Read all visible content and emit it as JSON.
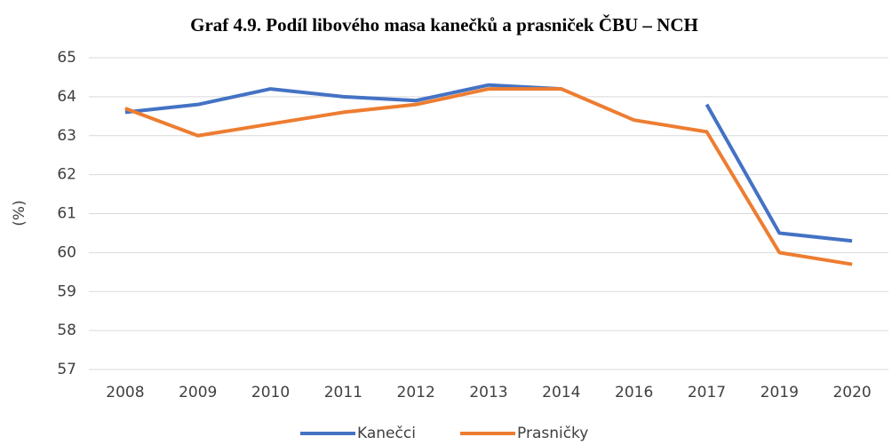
{
  "chart_data": {
    "type": "line",
    "title": "Graf 4.9. Podíl libového masa kanečků a prasniček ČBU – NCH",
    "y_label": "(%)",
    "categories": [
      "2008",
      "2009",
      "2010",
      "2011",
      "2012",
      "2013",
      "2014",
      "2016",
      "2017",
      "2019",
      "2020"
    ],
    "series": [
      {
        "name": "Kanečci",
        "color": "#4472c4",
        "values": [
          63.6,
          63.8,
          64.2,
          64.0,
          63.9,
          64.3,
          64.2,
          null,
          63.8,
          60.5,
          60.3
        ]
      },
      {
        "name": "Prasničky",
        "color": "#ed7d31",
        "values": [
          63.7,
          63.0,
          63.3,
          63.6,
          63.8,
          64.2,
          64.2,
          63.4,
          63.1,
          60.0,
          59.7
        ]
      }
    ],
    "ylim": [
      57,
      65
    ],
    "yticks": [
      57,
      58,
      59,
      60,
      61,
      62,
      63,
      64,
      65
    ],
    "grid": true,
    "legend": "bottom"
  }
}
